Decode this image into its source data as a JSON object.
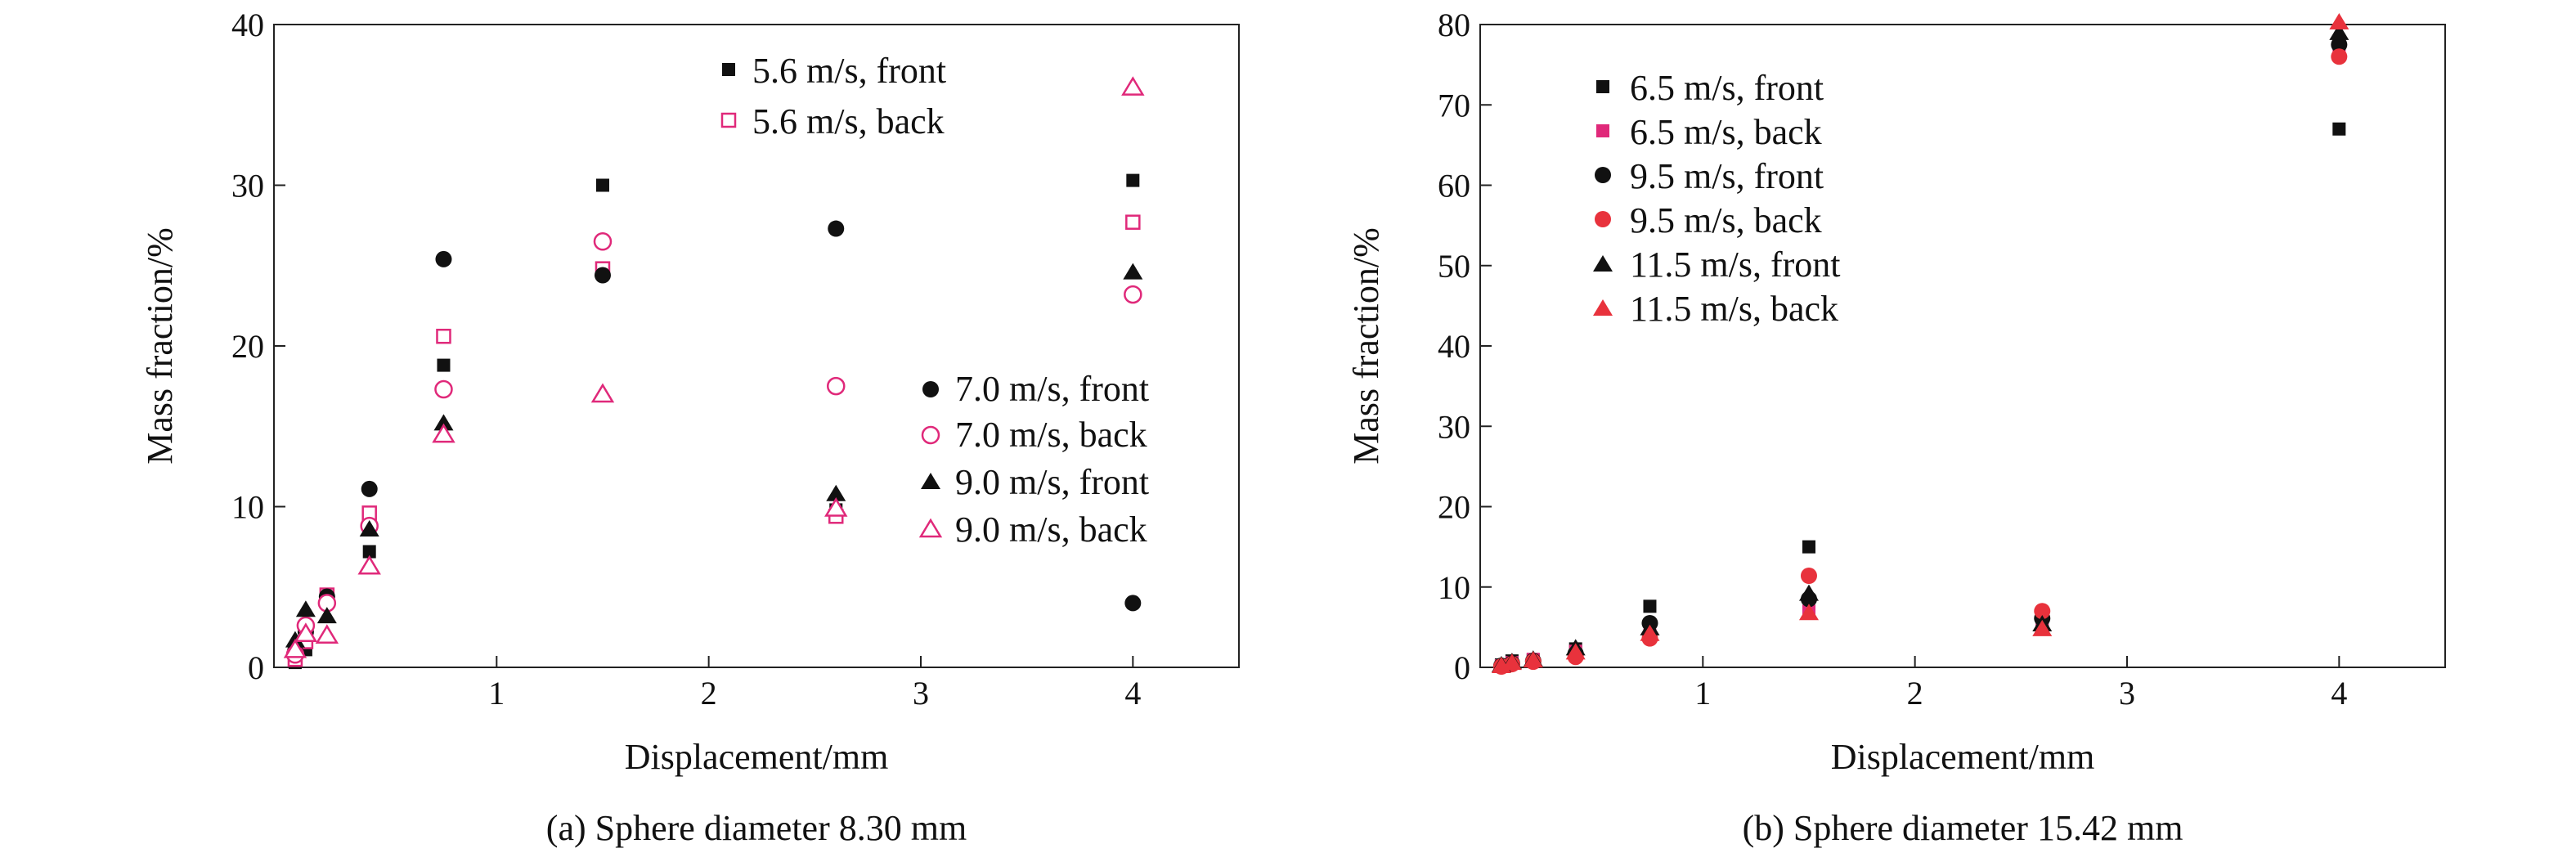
{
  "figure": {
    "panels": [
      {
        "caption": "(a) Sphere diameter 8.30 mm"
      },
      {
        "caption": "(b) Sphere diameter 15.42 mm"
      }
    ]
  },
  "chart_data": [
    {
      "type": "scatter",
      "title": "",
      "caption": "(a) Sphere diameter 8.30 mm",
      "xlabel": "Displacement/mm",
      "ylabel": "Mass fraction/%",
      "xlim": [
        -0.05,
        4.5
      ],
      "ylim": [
        0,
        40
      ],
      "xticks": [
        1,
        2,
        3,
        4
      ],
      "yticks": [
        0,
        10,
        20,
        30,
        40
      ],
      "grid": false,
      "legend": [
        {
          "placement": "top-right",
          "entries": [
            "5.6 m/s, front",
            "5.6 m/s, back"
          ]
        },
        {
          "placement": "center-right",
          "entries": [
            "7.0 m/s, front",
            "7.0 m/s, back",
            "9.0 m/s, front",
            "9.0 m/s, back"
          ]
        }
      ],
      "series": [
        {
          "name": "5.6 m/s, front",
          "marker": "square-filled",
          "color": "#111111",
          "x": [
            0.05,
            0.1,
            0.2,
            0.4,
            0.75,
            1.5,
            2.6,
            4.0
          ],
          "y": [
            0.3,
            1.1,
            4.2,
            7.2,
            18.8,
            30.0,
            9.8,
            30.3
          ]
        },
        {
          "name": "5.6 m/s, back",
          "marker": "square-open",
          "color": "#e0297a",
          "x": [
            0.05,
            0.1,
            0.2,
            0.4,
            0.75,
            1.5,
            2.6,
            4.0
          ],
          "y": [
            0.5,
            1.6,
            4.5,
            9.6,
            20.6,
            24.8,
            9.4,
            27.7
          ]
        },
        {
          "name": "7.0 m/s, front",
          "marker": "circle-filled",
          "color": "#111111",
          "x": [
            0.05,
            0.1,
            0.2,
            0.4,
            0.75,
            1.5,
            2.6,
            4.0
          ],
          "y": [
            1.0,
            2.2,
            4.4,
            11.1,
            25.4,
            24.4,
            27.3,
            4.0
          ]
        },
        {
          "name": "7.0 m/s, back",
          "marker": "circle-open",
          "color": "#e0297a",
          "x": [
            0.05,
            0.1,
            0.2,
            0.4,
            0.75,
            1.5,
            2.6,
            4.0
          ],
          "y": [
            0.8,
            2.6,
            4.0,
            8.8,
            17.3,
            26.5,
            17.5,
            23.2
          ]
        },
        {
          "name": "9.0 m/s, front",
          "marker": "triangle-filled",
          "color": "#111111",
          "x": [
            0.05,
            0.1,
            0.2,
            0.4,
            0.75,
            1.5,
            2.6,
            4.0
          ],
          "y": [
            1.7,
            3.6,
            3.2,
            8.6,
            15.2,
            17.1,
            10.8,
            24.6
          ]
        },
        {
          "name": "9.0 m/s, back",
          "marker": "triangle-open",
          "color": "#e0297a",
          "x": [
            0.05,
            0.1,
            0.2,
            0.4,
            0.75,
            1.5,
            2.6,
            4.0
          ],
          "y": [
            1.1,
            2.1,
            2.0,
            6.3,
            14.5,
            17.0,
            9.9,
            36.1
          ]
        }
      ]
    },
    {
      "type": "scatter",
      "title": "",
      "caption": "(b) Sphere diameter 15.42 mm",
      "xlabel": "Displacement/mm",
      "ylabel": "Mass fraction/%",
      "xlim": [
        -0.05,
        4.5
      ],
      "ylim": [
        0,
        80
      ],
      "xticks": [
        1,
        2,
        3,
        4
      ],
      "yticks": [
        0,
        10,
        20,
        30,
        40,
        50,
        60,
        70,
        80
      ],
      "grid": false,
      "legend": [
        {
          "placement": "top-left",
          "entries": [
            "6.5 m/s, front",
            "6.5 m/s, back",
            "9.5 m/s, front",
            "9.5 m/s, back",
            "11.5 m/s, front",
            "11.5 m/s, back"
          ]
        }
      ],
      "series": [
        {
          "name": "6.5 m/s, front",
          "marker": "square-filled",
          "color": "#111111",
          "x": [
            0.05,
            0.1,
            0.2,
            0.4,
            0.75,
            1.5,
            2.6,
            4.0
          ],
          "y": [
            0.3,
            0.8,
            0.9,
            2.3,
            7.6,
            15.0,
            5.8,
            67.0
          ]
        },
        {
          "name": "6.5 m/s, back",
          "marker": "square-filled",
          "color": "#e0297a",
          "x": [
            0.05,
            0.1,
            0.2,
            0.4,
            0.75,
            1.5,
            2.6,
            4.0
          ],
          "y": [
            0.2,
            0.6,
            1.0,
            2.0,
            4.0,
            7.0,
            5.2,
            77.0
          ]
        },
        {
          "name": "9.5 m/s, front",
          "marker": "circle-filled",
          "color": "#111111",
          "x": [
            0.05,
            0.1,
            0.2,
            0.4,
            0.75,
            1.5,
            2.6,
            4.0
          ],
          "y": [
            0.2,
            0.5,
            0.8,
            1.7,
            5.5,
            8.5,
            6.1,
            77.5
          ]
        },
        {
          "name": "9.5 m/s, back",
          "marker": "circle-filled",
          "color": "#e8323c",
          "x": [
            0.05,
            0.1,
            0.2,
            0.4,
            0.75,
            1.5,
            2.6,
            4.0
          ],
          "y": [
            0.1,
            0.4,
            0.7,
            1.3,
            3.6,
            11.4,
            7.0,
            76.0
          ]
        },
        {
          "name": "11.5 m/s, front",
          "marker": "triangle-filled",
          "color": "#111111",
          "x": [
            0.05,
            0.1,
            0.2,
            0.4,
            0.75,
            1.5,
            2.6,
            4.0
          ],
          "y": [
            0.3,
            0.7,
            1.0,
            2.4,
            4.9,
            9.2,
            5.4,
            79.0
          ]
        },
        {
          "name": "11.5 m/s, back",
          "marker": "triangle-filled",
          "color": "#e8323c",
          "x": [
            0.05,
            0.1,
            0.2,
            0.4,
            0.75,
            1.5,
            2.6,
            4.0
          ],
          "y": [
            0.2,
            0.6,
            0.9,
            1.9,
            4.2,
            6.8,
            4.8,
            80.3
          ]
        }
      ]
    }
  ]
}
